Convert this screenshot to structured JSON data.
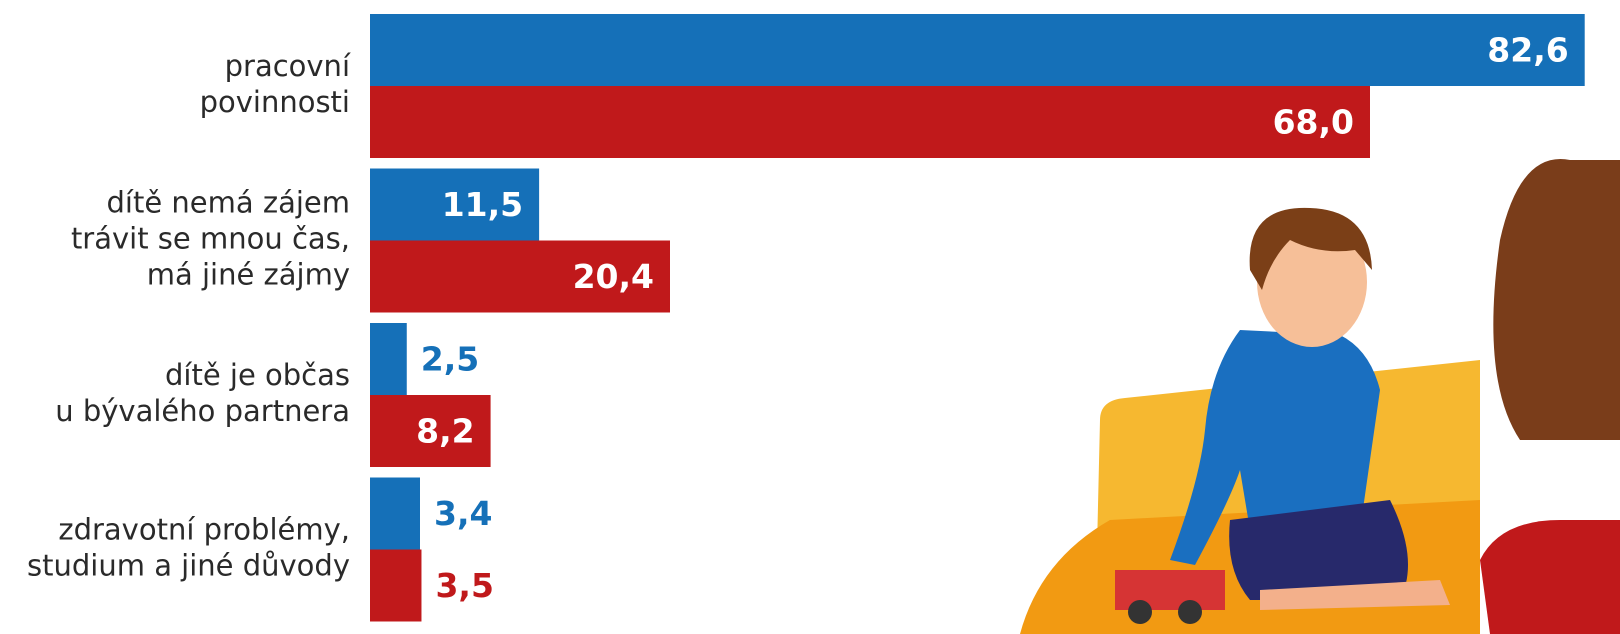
{
  "chart_data": {
    "type": "hbar",
    "categories": [
      [
        "pracovní",
        "povinnosti"
      ],
      [
        "dítě nemá zájem",
        "trávit se mnou čas,",
        "má jiné zájmy"
      ],
      [
        "dítě je občas",
        "u bývalého partnera"
      ],
      [
        "zdravotní problémy,",
        "studium a jiné důvody"
      ]
    ],
    "series": [
      {
        "color": "#1570b8",
        "values": [
          82.6,
          11.5,
          2.5,
          3.4
        ],
        "value_labels": [
          "82,6",
          "11,5",
          "2,5",
          "3,4"
        ]
      },
      {
        "color": "#c0191b",
        "values": [
          68.0,
          20.4,
          8.2,
          3.5
        ],
        "value_labels": [
          "68,0",
          "20,4",
          "8,2",
          "3,5"
        ]
      }
    ],
    "xlim": [
      0,
      85
    ]
  }
}
